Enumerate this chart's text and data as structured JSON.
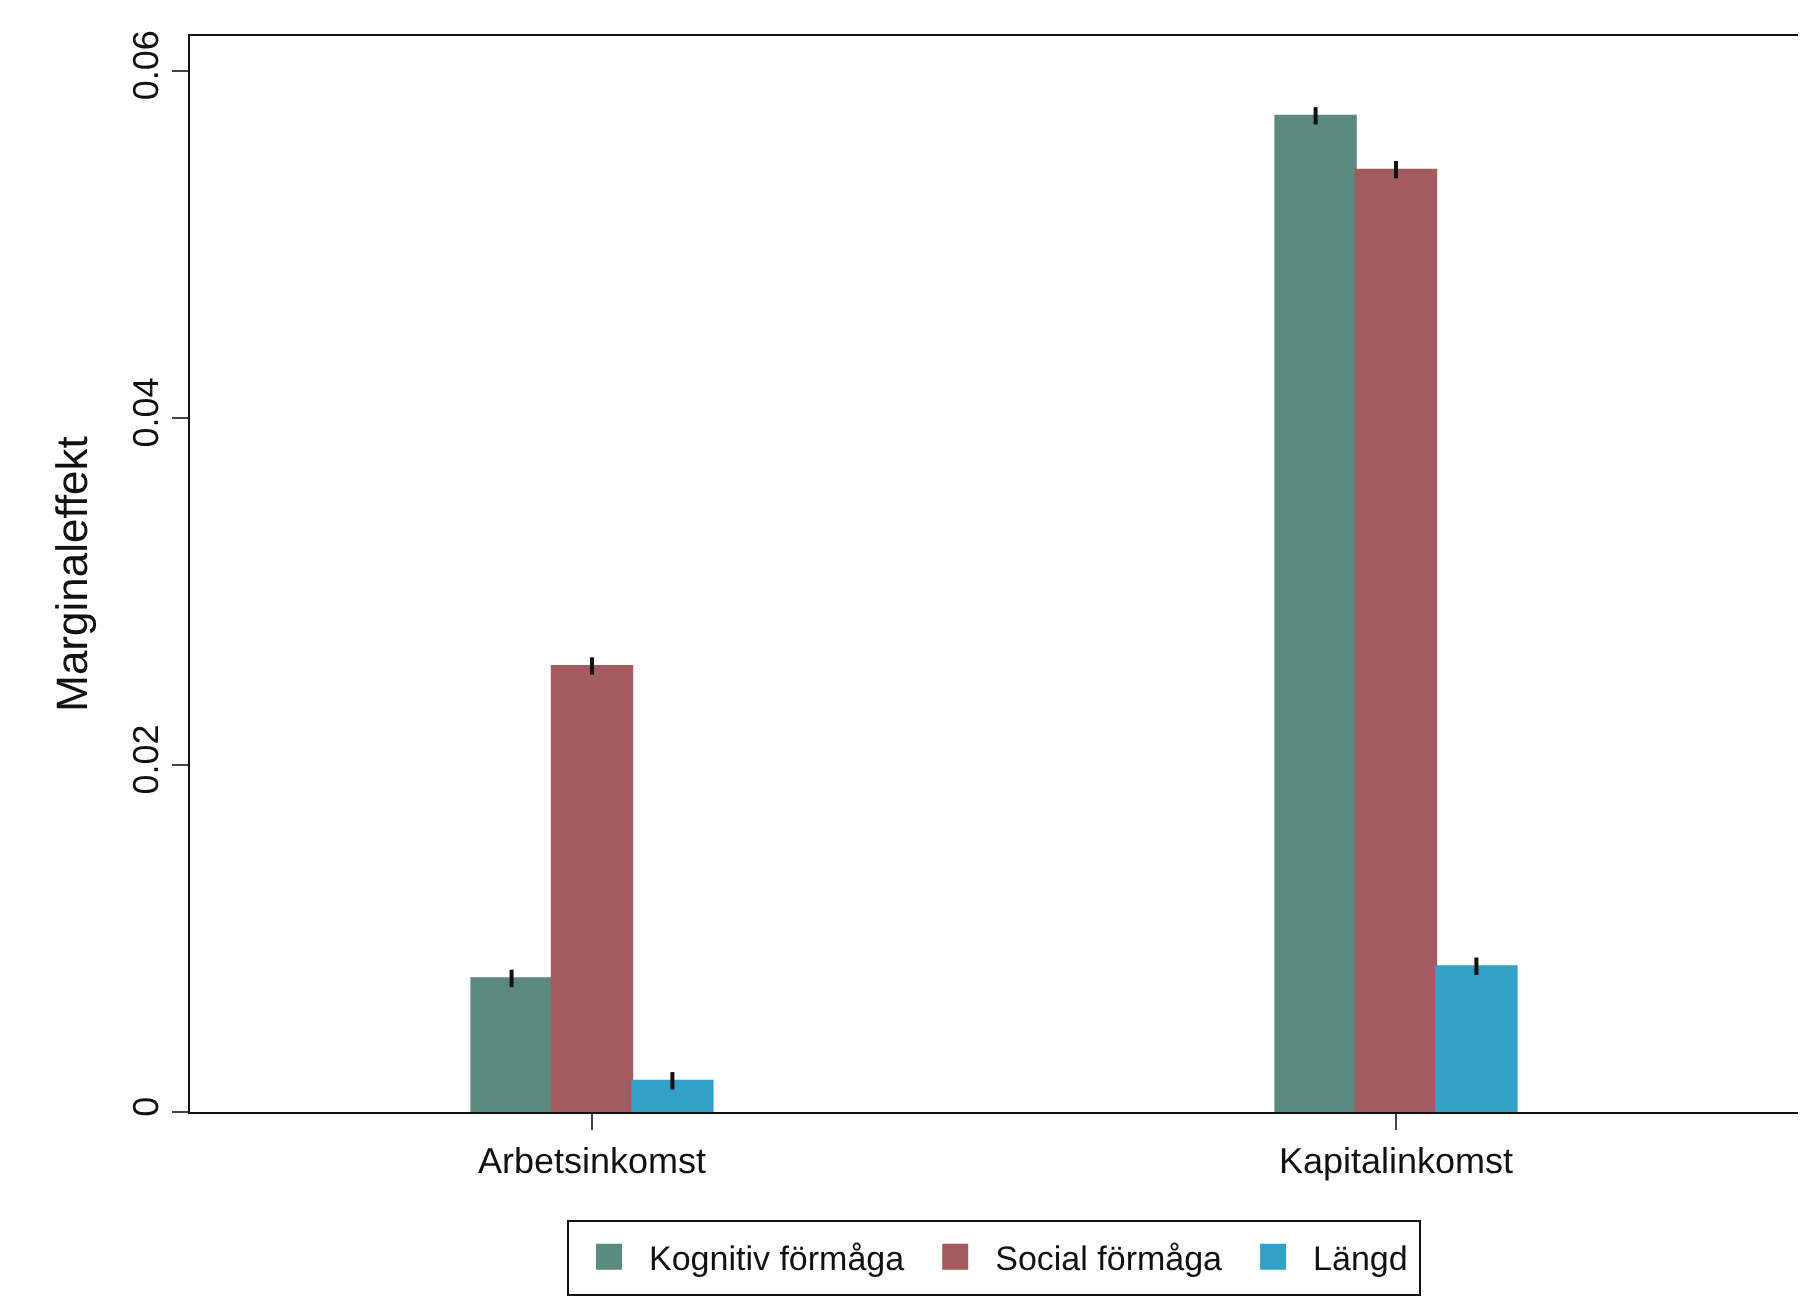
{
  "chart_data": {
    "type": "bar",
    "ylabel": "Marginaleffekt",
    "categories": [
      "Arbetsinkomst",
      "Kapitalinkomst"
    ],
    "series": [
      {
        "name": "Kognitiv förmåga",
        "color": "#5a8a80",
        "values": [
          0.0077,
          0.0574
        ],
        "errors": [
          0.0005,
          0.0005
        ]
      },
      {
        "name": "Social förmåga",
        "color": "#a35b5f",
        "values": [
          0.0257,
          0.0543
        ],
        "errors": [
          0.0005,
          0.0005
        ]
      },
      {
        "name": "Längd",
        "color": "#33a0c8",
        "values": [
          0.0018,
          0.0084
        ],
        "errors": [
          0.0005,
          0.0005
        ]
      }
    ],
    "ylim": [
      0,
      0.062
    ],
    "yticks": [
      0,
      0.02,
      0.04,
      0.06
    ],
    "legend": "bottom"
  }
}
